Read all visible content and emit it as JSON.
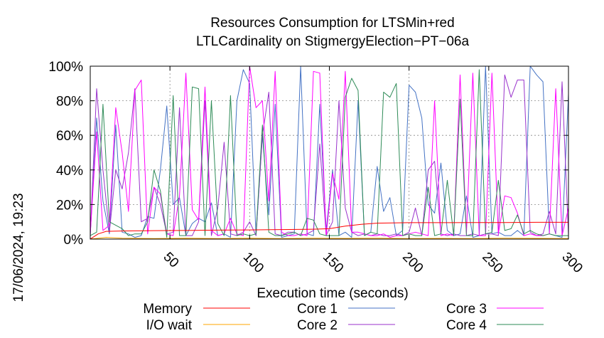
{
  "chart_data": {
    "type": "line",
    "title": [
      "Resources Consumption for LTSMin+red",
      "LTLCardinality on StigmergyElection−PT−06a"
    ],
    "xlabel": "Execution time (seconds)",
    "ylabel": "",
    "side_label": "17/06/2024, 19:23",
    "xlim": [
      0,
      300
    ],
    "ylim": [
      0,
      100
    ],
    "x_ticks": [
      50,
      100,
      150,
      200,
      250,
      300
    ],
    "y_ticks": [
      {
        "value": 0,
        "label": "0%"
      },
      {
        "value": 20,
        "label": "20%"
      },
      {
        "value": 40,
        "label": "40%"
      },
      {
        "value": 60,
        "label": "60%"
      },
      {
        "value": 80,
        "label": "80%"
      },
      {
        "value": 100,
        "label": "100%"
      }
    ],
    "grid": true,
    "legend_position": "bottom",
    "series": [
      {
        "name": "Memory",
        "color": "#ff0000",
        "x": [
          0,
          5,
          10,
          20,
          40,
          60,
          80,
          100,
          120,
          140,
          150,
          160,
          170,
          180,
          200,
          220,
          240,
          260,
          280,
          300
        ],
        "y": [
          0,
          3,
          4.5,
          4.7,
          4.9,
          5.0,
          5.2,
          5.3,
          5.5,
          5.7,
          6,
          7.5,
          8.5,
          9.2,
          9.5,
          9.5,
          9.6,
          9.6,
          9.7,
          9.7
        ]
      },
      {
        "name": "I/O wait",
        "color": "#ffa500",
        "x": [
          0,
          10,
          20,
          40,
          60,
          80,
          100,
          120,
          140,
          160,
          180,
          200,
          220,
          240,
          260,
          280,
          300
        ],
        "y": [
          0,
          1,
          0.5,
          0.3,
          0.5,
          0.3,
          0.5,
          0.3,
          0.5,
          0.4,
          0.5,
          0.3,
          0.4,
          0.3,
          0.5,
          0.4,
          0.3
        ]
      },
      {
        "name": "Core 1",
        "color": "#4472c4",
        "x": [
          0,
          4,
          8,
          12,
          16,
          20,
          24,
          28,
          32,
          36,
          40,
          44,
          48,
          52,
          56,
          60,
          64,
          68,
          72,
          76,
          80,
          84,
          88,
          92,
          96,
          100,
          104,
          108,
          112,
          116,
          120,
          124,
          128,
          132,
          136,
          140,
          144,
          148,
          152,
          156,
          160,
          164,
          168,
          172,
          176,
          180,
          184,
          188,
          192,
          196,
          200,
          204,
          208,
          212,
          216,
          220,
          224,
          228,
          232,
          236,
          240,
          244,
          248,
          252,
          256,
          260,
          264,
          268,
          272,
          276,
          280,
          284,
          288,
          292,
          296,
          300
        ],
        "y": [
          2,
          70,
          22,
          3,
          66,
          4,
          3,
          1,
          2,
          13,
          12,
          40,
          77,
          20,
          24,
          2,
          9,
          12,
          10,
          21,
          2,
          3,
          1,
          80,
          98,
          90,
          2,
          60,
          14,
          78,
          1,
          2,
          3,
          100,
          3,
          2,
          78,
          5,
          40,
          2,
          4,
          1,
          80,
          2,
          4,
          42,
          16,
          24,
          2,
          5,
          89,
          85,
          70,
          20,
          15,
          44,
          5,
          2,
          3,
          25,
          1,
          2,
          100,
          3,
          4,
          2,
          2,
          5,
          2,
          100,
          95,
          91,
          3,
          2,
          1,
          84
        ]
      },
      {
        "name": "Core 2",
        "color": "#9932cc",
        "x": [
          0,
          4,
          8,
          12,
          16,
          20,
          24,
          28,
          32,
          36,
          40,
          44,
          48,
          52,
          56,
          60,
          64,
          68,
          72,
          76,
          80,
          84,
          88,
          92,
          96,
          100,
          104,
          108,
          112,
          116,
          120,
          124,
          128,
          132,
          136,
          140,
          144,
          148,
          152,
          156,
          160,
          164,
          168,
          172,
          176,
          180,
          184,
          188,
          192,
          196,
          200,
          204,
          208,
          212,
          216,
          220,
          224,
          228,
          232,
          236,
          240,
          244,
          248,
          252,
          256,
          260,
          264,
          268,
          272,
          276,
          280,
          284,
          288,
          292,
          296,
          300
        ],
        "y": [
          2,
          87,
          40,
          4,
          40,
          29,
          50,
          87,
          10,
          12,
          30,
          20,
          3,
          4,
          76,
          2,
          2,
          10,
          80,
          2,
          18,
          56,
          3,
          2,
          4,
          10,
          2,
          60,
          85,
          3,
          2,
          4,
          4,
          2,
          3,
          5,
          55,
          2,
          10,
          80,
          18,
          4,
          2,
          3,
          2,
          3,
          2,
          2,
          3,
          2,
          4,
          18,
          2,
          40,
          45,
          3,
          2,
          3,
          2,
          2,
          3,
          2,
          3,
          3,
          2,
          95,
          82,
          92,
          92,
          4,
          2,
          3,
          16,
          3,
          91,
          2
        ]
      },
      {
        "name": "Core 3",
        "color": "#ff00ff",
        "x": [
          0,
          4,
          8,
          12,
          16,
          20,
          24,
          28,
          32,
          36,
          40,
          44,
          48,
          52,
          56,
          60,
          64,
          68,
          72,
          76,
          80,
          84,
          88,
          92,
          96,
          100,
          104,
          108,
          112,
          116,
          120,
          124,
          128,
          132,
          136,
          140,
          144,
          148,
          152,
          156,
          160,
          164,
          168,
          172,
          176,
          180,
          184,
          188,
          192,
          196,
          200,
          204,
          208,
          212,
          216,
          220,
          224,
          228,
          232,
          236,
          240,
          244,
          248,
          252,
          256,
          260,
          264,
          268,
          272,
          276,
          280,
          284,
          288,
          292,
          296,
          300
        ],
        "y": [
          3,
          62,
          5,
          8,
          76,
          50,
          16,
          86,
          92,
          3,
          30,
          26,
          3,
          2,
          25,
          96,
          17,
          11,
          88,
          5,
          2,
          3,
          12,
          3,
          2,
          100,
          76,
          80,
          22,
          97,
          4,
          2,
          2,
          3,
          2,
          97,
          96,
          2,
          38,
          23,
          97,
          4,
          4,
          3,
          2,
          2,
          3,
          1,
          2,
          2,
          3,
          4,
          3,
          2,
          80,
          2,
          3,
          2,
          95,
          3,
          96,
          2,
          2,
          96,
          3,
          25,
          24,
          15,
          2,
          3,
          2,
          2,
          3,
          87,
          2,
          18
        ]
      },
      {
        "name": "Core 4",
        "color": "#2e8b57",
        "x": [
          0,
          4,
          8,
          12,
          16,
          20,
          24,
          28,
          32,
          36,
          40,
          44,
          48,
          52,
          56,
          60,
          64,
          68,
          72,
          76,
          80,
          84,
          88,
          92,
          96,
          100,
          104,
          108,
          112,
          116,
          120,
          124,
          128,
          132,
          136,
          140,
          144,
          148,
          152,
          156,
          160,
          164,
          168,
          172,
          176,
          180,
          184,
          188,
          192,
          196,
          200,
          204,
          208,
          212,
          216,
          220,
          224,
          228,
          232,
          236,
          240,
          244,
          248,
          252,
          256,
          260,
          264,
          268,
          272,
          276,
          280,
          284,
          288,
          292,
          296,
          300
        ],
        "y": [
          2,
          4,
          78,
          10,
          8,
          6,
          2,
          3,
          3,
          10,
          40,
          28,
          1,
          83,
          2,
          2,
          88,
          87,
          2,
          80,
          9,
          2,
          83,
          2,
          3,
          2,
          3,
          66,
          4,
          2,
          2,
          3,
          4,
          2,
          12,
          11,
          3,
          2,
          2,
          2,
          82,
          93,
          86,
          2,
          4,
          3,
          85,
          82,
          90,
          2,
          3,
          2,
          2,
          30,
          2,
          3,
          34,
          2,
          81,
          2,
          2,
          98,
          3,
          4,
          34,
          5,
          6,
          14,
          3,
          5,
          3,
          2,
          3,
          2,
          2,
          2
        ]
      }
    ]
  }
}
